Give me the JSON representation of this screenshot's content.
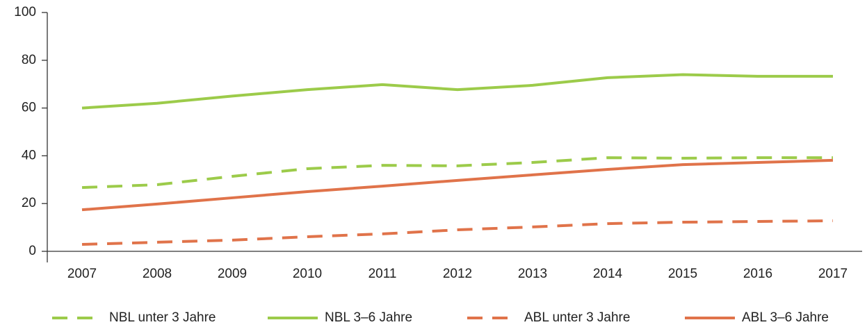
{
  "chart_data": {
    "type": "line",
    "x": [
      "2007",
      "2008",
      "2009",
      "2010",
      "2011",
      "2012",
      "2013",
      "2014",
      "2015",
      "2016",
      "2017"
    ],
    "series": [
      {
        "name": "NBL unter 3 Jahre",
        "color": "#9ccb4a",
        "dashed": true,
        "values": [
          26.7,
          27.9,
          31.4,
          34.6,
          36,
          35.8,
          37.2,
          39.2,
          39,
          39.2,
          39.2
        ]
      },
      {
        "name": "NBL 3–6 Jahre",
        "color": "#9ccb4a",
        "dashed": false,
        "values": [
          60,
          62,
          65,
          67.7,
          69.8,
          67.7,
          69.5,
          72.7,
          74,
          73.3,
          73.3
        ]
      },
      {
        "name": "ABL unter 3 Jahre",
        "color": "#e0734a",
        "dashed": true,
        "values": [
          2.9,
          3.8,
          4.7,
          6.1,
          7.3,
          9,
          10.2,
          11.6,
          12.2,
          12.5,
          12.8
        ]
      },
      {
        "name": "ABL 3–6 Jahre",
        "color": "#e0734a",
        "dashed": false,
        "values": [
          17.4,
          19.8,
          22.4,
          25,
          27.3,
          29.7,
          32,
          34.3,
          36.3,
          37.2,
          38.1
        ]
      }
    ],
    "ylim": [
      0,
      100
    ],
    "yticks": [
      0,
      20,
      40,
      60,
      80,
      100
    ],
    "grid": false,
    "legend": "bottom"
  }
}
